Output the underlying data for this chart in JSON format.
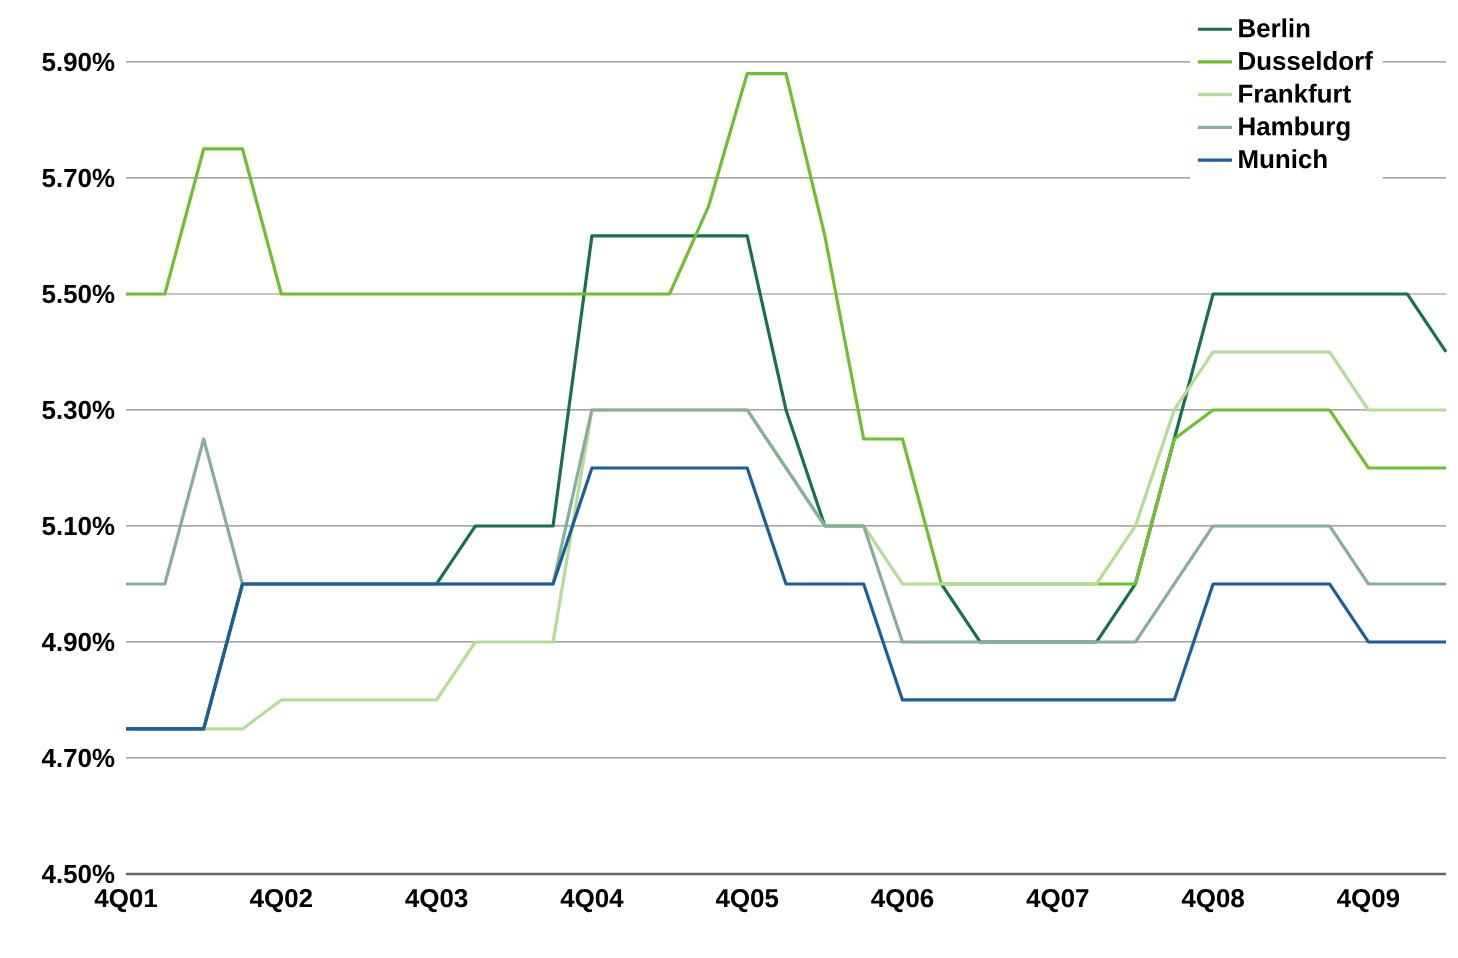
{
  "chart_data": {
    "type": "line",
    "categories": [
      "4Q01",
      null,
      null,
      null,
      "4Q02",
      null,
      null,
      null,
      "4Q03",
      null,
      null,
      null,
      "4Q04",
      null,
      null,
      null,
      "4Q05",
      null,
      null,
      null,
      "4Q06",
      null,
      null,
      null,
      "4Q07",
      null,
      null,
      null,
      "4Q08",
      null,
      null,
      null,
      "4Q09",
      null,
      null
    ],
    "series": [
      {
        "name": "Berlin",
        "color": "#17714a",
        "values": [
          4.75,
          4.75,
          4.75,
          5.0,
          5.0,
          5.0,
          5.0,
          5.0,
          5.0,
          5.1,
          5.1,
          5.1,
          5.6,
          5.6,
          5.6,
          5.6,
          5.6,
          5.3,
          5.1,
          5.1,
          null,
          5.0,
          4.9,
          4.9,
          4.9,
          4.9,
          5.0,
          5.25,
          5.5,
          5.5,
          5.5,
          5.5,
          5.5,
          5.5,
          5.4
        ]
      },
      {
        "name": "Dusseldorf",
        "color": "#6fbf2e",
        "values": [
          5.5,
          5.5,
          5.75,
          5.75,
          5.5,
          5.5,
          5.5,
          5.5,
          5.5,
          5.5,
          5.5,
          5.5,
          5.5,
          5.5,
          5.5,
          5.65,
          5.88,
          5.88,
          5.6,
          5.25,
          5.25,
          5.0,
          5.0,
          5.0,
          5.0,
          5.0,
          5.0,
          5.25,
          5.3,
          5.3,
          5.3,
          5.3,
          5.2,
          5.2,
          5.2
        ]
      },
      {
        "name": "Frankfurt",
        "color": "#b3de94",
        "values": [
          null,
          null,
          4.75,
          4.75,
          4.8,
          4.8,
          4.8,
          4.8,
          4.8,
          4.9,
          4.9,
          4.9,
          5.3,
          5.3,
          5.3,
          5.3,
          5.3,
          5.2,
          5.1,
          5.1,
          5.0,
          5.0,
          5.0,
          5.0,
          5.0,
          5.0,
          5.1,
          5.3,
          5.4,
          5.4,
          5.4,
          5.4,
          5.3,
          5.3,
          5.3
        ]
      },
      {
        "name": "Hamburg",
        "color": "#86ae98",
        "values": [
          5.0,
          5.0,
          5.25,
          5.0,
          5.0,
          5.0,
          5.0,
          5.0,
          5.0,
          5.0,
          5.0,
          5.0,
          5.3,
          5.3,
          5.3,
          5.3,
          5.3,
          5.2,
          5.1,
          5.1,
          4.9,
          4.9,
          4.9,
          4.9,
          4.9,
          4.9,
          4.9,
          5.0,
          5.1,
          5.1,
          5.1,
          5.1,
          5.0,
          5.0,
          5.0
        ]
      },
      {
        "name": "Munich",
        "color": "#1b5e9c",
        "values": [
          4.75,
          4.75,
          4.75,
          5.0,
          5.0,
          5.0,
          5.0,
          5.0,
          5.0,
          5.0,
          5.0,
          5.0,
          5.2,
          5.2,
          5.2,
          5.2,
          5.2,
          5.0,
          5.0,
          5.0,
          4.8,
          4.8,
          4.8,
          4.8,
          4.8,
          4.8,
          4.8,
          4.8,
          5.0,
          5.0,
          5.0,
          5.0,
          4.9,
          4.9,
          4.9
        ]
      }
    ],
    "ylim": [
      4.5,
      5.9
    ],
    "yticks": [
      {
        "value": 4.5,
        "label": "4.50%"
      },
      {
        "value": 4.7,
        "label": "4.70%"
      },
      {
        "value": 4.9,
        "label": "4.90%"
      },
      {
        "value": 5.1,
        "label": "5.10%"
      },
      {
        "value": 5.3,
        "label": "5.30%"
      },
      {
        "value": 5.5,
        "label": "5.50%"
      },
      {
        "value": 5.7,
        "label": "5.70%"
      },
      {
        "value": 5.9,
        "label": "5.90%"
      }
    ],
    "grid": "y",
    "legend": "top right",
    "marker": "none",
    "line_style": "solid"
  }
}
